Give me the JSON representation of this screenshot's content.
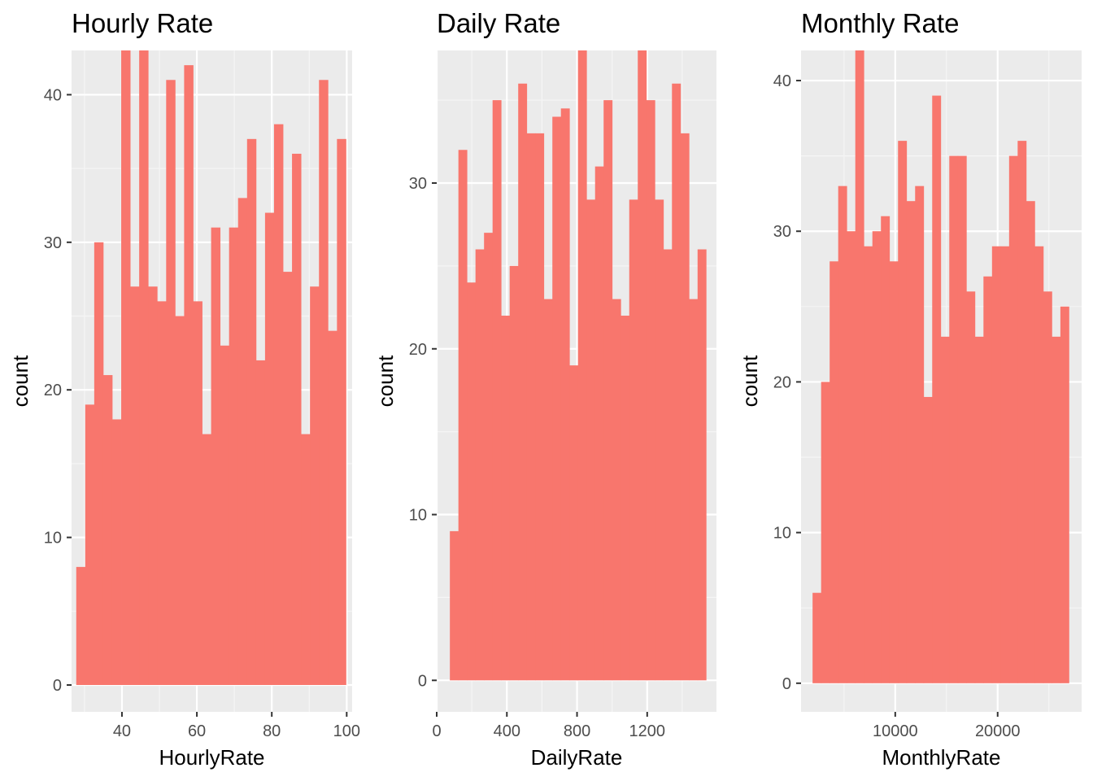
{
  "chart_data": [
    {
      "type": "bar",
      "title": "Hourly Rate",
      "xlabel": "HourlyRate",
      "ylabel": "count",
      "grid": true,
      "xlim": [
        26.55,
        101.45
      ],
      "ylim": [
        -1.82,
        43.0
      ],
      "x_ticks": [
        40,
        60,
        80,
        100
      ],
      "y_ticks": [
        0,
        10,
        20,
        30,
        40
      ],
      "bin_start": 27.8,
      "bin_width": 2.4,
      "values": [
        8,
        19,
        30,
        21,
        18,
        43,
        27,
        43,
        27,
        26,
        41,
        25,
        42,
        26,
        17,
        31,
        23,
        31,
        33,
        37,
        22,
        32,
        38,
        28,
        36,
        17,
        27,
        41,
        24,
        37
      ],
      "color": "#f8766d"
    },
    {
      "type": "bar",
      "title": "Daily Rate",
      "xlabel": "DailyRate",
      "ylabel": "count",
      "grid": true,
      "xlim": [
        0,
        1595
      ],
      "ylim": [
        -1.9,
        38.0
      ],
      "x_ticks": [
        0,
        400,
        800,
        1200
      ],
      "y_ticks": [
        0,
        10,
        20,
        30
      ],
      "bin_start": 75,
      "bin_width": 48.7,
      "values": [
        9,
        32,
        24,
        26,
        27,
        35,
        22,
        25,
        36,
        33,
        33,
        23,
        34,
        34.5,
        19,
        38,
        29,
        31,
        35,
        23,
        22,
        29,
        38,
        35,
        29,
        26,
        36,
        33,
        23,
        26
      ],
      "color": "#f8766d"
    },
    {
      "type": "bar",
      "title": "Monthly Rate",
      "xlabel": "MonthlyRate",
      "ylabel": "count",
      "grid": true,
      "xlim": [
        800,
        28200
      ],
      "ylim": [
        -1.9,
        42.0
      ],
      "x_ticks": [
        10000,
        20000
      ],
      "y_ticks": [
        0,
        10,
        20,
        30,
        40
      ],
      "bin_start": 1925,
      "bin_width": 834.5,
      "values": [
        6,
        20,
        28,
        33,
        30,
        42,
        29,
        30,
        31,
        28,
        36,
        32,
        33,
        19,
        39,
        23,
        35,
        35,
        26,
        23,
        27,
        29,
        29,
        35,
        36,
        32,
        29,
        26,
        23,
        25
      ],
      "color": "#f8766d"
    }
  ]
}
